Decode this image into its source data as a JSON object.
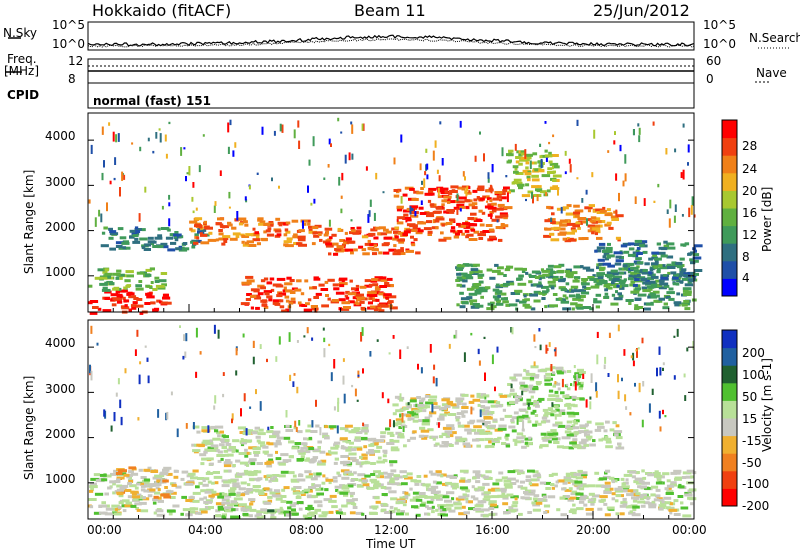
{
  "header": {
    "station": "Hokkaido (fitACF)",
    "beam": "Beam 11",
    "date": "25/Jun/2012"
  },
  "status_panel": {
    "nsky_label": "N.Sky",
    "nsearch_label": "N.Search",
    "nsky_ticks": [
      "10^5",
      "10^0"
    ],
    "nsearch_ticks": [
      "10^5",
      "10^0"
    ],
    "freq_label_line1": "Freq.",
    "freq_label_line2": "[MHz]",
    "freq_ticks": [
      "12",
      "8"
    ],
    "nave_label": "Nave",
    "nave_ticks": [
      "60",
      "0"
    ],
    "cpid_label": "CPID",
    "cpid_value": "normal (fast) 151"
  },
  "colorbars": {
    "power": {
      "label": "Power [dB]",
      "ticks": [
        "28",
        "24",
        "20",
        "16",
        "12",
        "8",
        "4"
      ],
      "colors": [
        "#0000ff",
        "#1f4fa8",
        "#2f6f80",
        "#3f9a5a",
        "#60b040",
        "#a8c830",
        "#f0b020",
        "#f08018",
        "#f04010",
        "#ff0000"
      ]
    },
    "velocity": {
      "label": "Velocity [m s-1]",
      "ticks": [
        "200",
        "100",
        "50",
        "15",
        "-15",
        "-50",
        "-100",
        "-200"
      ],
      "colors": [
        "#1030c0",
        "#2060a0",
        "#206030",
        "#50c030",
        "#b8e098",
        "#c8c8c0",
        "#f0b030",
        "#f08020",
        "#f04010",
        "#ff0000"
      ]
    }
  },
  "axes": {
    "y_label": "Slant Range [km]",
    "y_ticks": [
      "4000",
      "3000",
      "2000",
      "1000"
    ],
    "x_ticks": [
      "00:00",
      "04:00",
      "08:00",
      "12:00",
      "16:00",
      "20:00",
      "00:00"
    ],
    "x_label": "Time UT"
  },
  "chart_data": [
    {
      "type": "heatmap",
      "quantity": "Power",
      "unit": "dB",
      "x": [
        "00:00",
        "04:00",
        "08:00",
        "12:00",
        "16:00",
        "20:00",
        "24:00"
      ],
      "ylim": [
        200,
        4600
      ],
      "clim": [
        0,
        32
      ],
      "features": [
        {
          "t": [
            0.0,
            3.0
          ],
          "range": [
            200,
            700
          ],
          "value": 30
        },
        {
          "t": [
            0.0,
            3.0
          ],
          "range": [
            700,
            1200
          ],
          "value": 14
        },
        {
          "t": [
            0.5,
            4.5
          ],
          "range": [
            1600,
            2100
          ],
          "value": 9
        },
        {
          "t": [
            4.0,
            9.0
          ],
          "range": [
            1700,
            2300
          ],
          "value": 25
        },
        {
          "t": [
            6.0,
            12.0
          ],
          "range": [
            250,
            1000
          ],
          "value": 27
        },
        {
          "t": [
            9.0,
            13.0
          ],
          "range": [
            1500,
            2100
          ],
          "value": 26
        },
        {
          "t": [
            12.0,
            16.5
          ],
          "range": [
            1800,
            3000
          ],
          "value": 27
        },
        {
          "t": [
            16.5,
            18.5
          ],
          "range": [
            2800,
            3800
          ],
          "value": 17
        },
        {
          "t": [
            18.0,
            21.0
          ],
          "range": [
            1800,
            2600
          ],
          "value": 24
        },
        {
          "t": [
            14.5,
            24.0
          ],
          "range": [
            300,
            1300
          ],
          "value": 12
        },
        {
          "t": [
            20.0,
            24.0
          ],
          "range": [
            800,
            1800
          ],
          "value": 9
        }
      ]
    },
    {
      "type": "heatmap",
      "quantity": "Velocity",
      "unit": "m s-1",
      "x": [
        "00:00",
        "04:00",
        "08:00",
        "12:00",
        "16:00",
        "20:00",
        "24:00"
      ],
      "ylim": [
        200,
        4600
      ],
      "clim": [
        -250,
        250
      ],
      "features": [
        {
          "t": [
            0.0,
            24.0
          ],
          "range": [
            300,
            1300
          ],
          "value": 0
        },
        {
          "t": [
            4.0,
            12.0
          ],
          "range": [
            1400,
            2300
          ],
          "value": 0
        },
        {
          "t": [
            12.0,
            16.5
          ],
          "range": [
            1800,
            3000
          ],
          "value": -5
        },
        {
          "t": [
            16.5,
            19.5
          ],
          "range": [
            1800,
            3600
          ],
          "value": 30
        },
        {
          "t": [
            19.0,
            21.0
          ],
          "range": [
            1800,
            2400
          ],
          "value": 0
        },
        {
          "t": [
            1.0,
            3.0
          ],
          "range": [
            700,
            1400
          ],
          "value": -60
        },
        {
          "t": [
            5.0,
            9.0
          ],
          "range": [
            250,
            500
          ],
          "value": 40
        }
      ]
    }
  ]
}
